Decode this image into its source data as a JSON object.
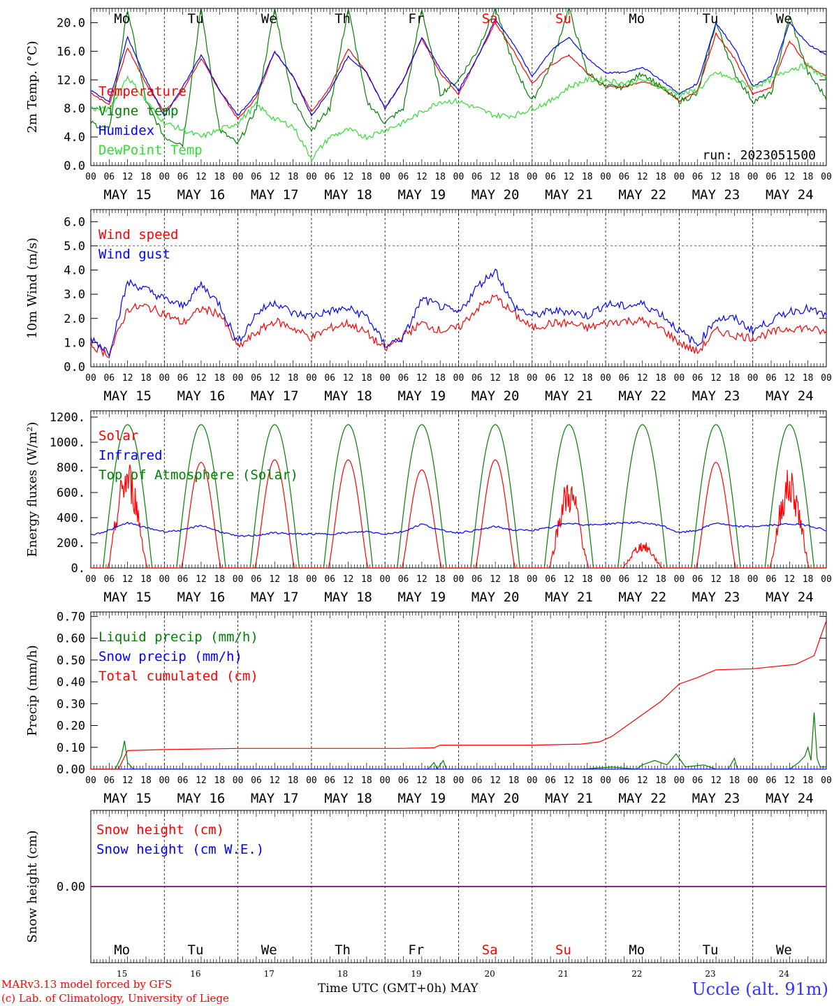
{
  "days": [
    "Mo",
    "Tu",
    "We",
    "Th",
    "Fr",
    "Sa",
    "Su",
    "Mo",
    "Tu",
    "We"
  ],
  "weekend_days": [
    5,
    6
  ],
  "dates": [
    "MAY 15",
    "MAY 16",
    "MAY 17",
    "MAY 18",
    "MAY 19",
    "MAY 20",
    "MAY 21",
    "MAY 22",
    "MAY 23",
    "MAY 24"
  ],
  "day_numbers": [
    "15",
    "16",
    "17",
    "18",
    "19",
    "20",
    "21",
    "22",
    "23",
    "24"
  ],
  "hour_ticks": [
    "00",
    "06",
    "12",
    "18"
  ],
  "run_label": "run: 2023051500",
  "footer": {
    "model": "MARv3.13 model forced by GFS",
    "credit": "(c) Lab. of Climatology, University of Liege",
    "xlabel": "Time UTC (GMT+0h) MAY",
    "station": "Uccle (alt. 91m)"
  },
  "colors": {
    "red": "#ff0000",
    "blue": "#0000ff",
    "green": "#008000",
    "lightgreen": "#33dd33",
    "purple": "#800080"
  },
  "chart_data": [
    {
      "type": "line",
      "ylabel": "2m Temp. (°C)",
      "ylim": [
        0,
        22
      ],
      "yticks": [
        "0.0",
        "4.0",
        "8.0",
        "12.0",
        "16.0",
        "20.0"
      ],
      "ytick_values": [
        0,
        4,
        8,
        12,
        16,
        20
      ],
      "x_hours": [
        0,
        6,
        12,
        18,
        24,
        30,
        36,
        42,
        48,
        54,
        60,
        66,
        72,
        78,
        84,
        90,
        96,
        102,
        108,
        114,
        120,
        126,
        132,
        138,
        144,
        150,
        156,
        162,
        168,
        174,
        180,
        186,
        192,
        198,
        204,
        210,
        216,
        222,
        228,
        234,
        240
      ],
      "series": [
        {
          "name": "Temperature",
          "color": "#ff0000",
          "values": [
            10.2,
            8.5,
            16.5,
            11.5,
            7.5,
            10.5,
            15.0,
            10.5,
            6.5,
            9.5,
            16.0,
            12.5,
            7.5,
            11.0,
            16.3,
            13.0,
            8.0,
            12.0,
            17.8,
            13.0,
            10.0,
            15.0,
            20.0,
            16.0,
            11.5,
            14.0,
            15.5,
            13.0,
            11.0,
            11.0,
            11.8,
            11.0,
            9.0,
            10.5,
            18.5,
            15.0,
            10.0,
            11.0,
            17.5,
            14.0,
            12.5
          ]
        },
        {
          "name": "Vigne temp",
          "color": "#008000",
          "values": [
            6.0,
            5.0,
            22.0,
            9.0,
            4.0,
            3.0,
            22.0,
            5.0,
            3.0,
            8.0,
            22.0,
            9.0,
            5.0,
            8.0,
            22.0,
            9.0,
            6.0,
            8.0,
            22.0,
            10.0,
            12.0,
            16.0,
            22.0,
            14.0,
            9.0,
            14.0,
            22.0,
            13.0,
            11.0,
            11.0,
            13.0,
            11.0,
            9.0,
            10.0,
            20.0,
            13.0,
            9.0,
            10.0,
            21.0,
            13.0,
            9.5
          ]
        },
        {
          "name": "Humidex",
          "color": "#0000ff",
          "values": [
            10.5,
            9.0,
            18.0,
            12.0,
            7.0,
            11.0,
            15.5,
            10.5,
            7.0,
            10.0,
            16.0,
            12.5,
            7.0,
            10.5,
            15.3,
            13.0,
            8.0,
            12.0,
            18.0,
            13.5,
            10.5,
            15.0,
            20.5,
            17.0,
            12.5,
            16.0,
            18.0,
            15.0,
            13.0,
            13.0,
            13.8,
            12.0,
            10.0,
            11.5,
            20.0,
            16.5,
            11.0,
            12.5,
            20.0,
            17.0,
            15.5
          ]
        },
        {
          "name": "DewPoint Temp",
          "color": "#33dd33",
          "values": [
            8.0,
            7.8,
            12.5,
            9.0,
            6.0,
            5.0,
            4.0,
            5.0,
            6.0,
            8.5,
            6.5,
            5.5,
            1.0,
            4.0,
            5.0,
            4.0,
            5.0,
            6.0,
            7.5,
            9.0,
            9.0,
            8.0,
            7.0,
            7.0,
            8.0,
            9.0,
            11.0,
            12.0,
            12.0,
            11.5,
            12.0,
            11.0,
            10.0,
            10.5,
            13.0,
            12.0,
            11.0,
            12.0,
            13.5,
            14.0,
            12.0
          ]
        }
      ]
    },
    {
      "type": "line",
      "ylabel": "10m Wind (m/s)",
      "ylim": [
        0,
        6.5
      ],
      "yticks": [
        "0.0",
        "1.0",
        "2.0",
        "3.0",
        "4.0",
        "5.0",
        "6.0"
      ],
      "ytick_values": [
        0,
        1,
        2,
        3,
        4,
        5,
        6
      ],
      "x_hours": [
        0,
        6,
        12,
        18,
        24,
        30,
        36,
        42,
        48,
        54,
        60,
        66,
        72,
        78,
        84,
        90,
        96,
        102,
        108,
        114,
        120,
        126,
        132,
        138,
        144,
        150,
        156,
        162,
        168,
        174,
        180,
        186,
        192,
        198,
        204,
        210,
        216,
        222,
        228,
        234,
        240
      ],
      "series": [
        {
          "name": "Wind speed",
          "color": "#ff0000",
          "values": [
            0.9,
            0.5,
            2.4,
            2.5,
            2.2,
            1.8,
            2.4,
            2.2,
            0.8,
            1.4,
            1.9,
            1.6,
            1.2,
            1.6,
            1.8,
            1.4,
            0.7,
            1.3,
            1.8,
            1.5,
            1.6,
            2.4,
            2.9,
            2.2,
            1.6,
            1.8,
            1.8,
            1.6,
            1.8,
            1.9,
            1.9,
            1.6,
            1.0,
            0.6,
            1.5,
            1.3,
            1.2,
            1.4,
            1.6,
            1.6,
            1.4
          ]
        },
        {
          "name": "Wind gust",
          "color": "#0000ff",
          "values": [
            1.2,
            0.6,
            3.5,
            3.2,
            2.8,
            2.5,
            3.4,
            2.6,
            1.0,
            2.2,
            2.7,
            2.2,
            2.1,
            2.3,
            2.4,
            2.1,
            0.9,
            1.2,
            2.8,
            2.5,
            2.2,
            3.3,
            4.0,
            2.5,
            2.1,
            2.3,
            2.3,
            2.1,
            2.6,
            2.5,
            2.6,
            2.2,
            1.5,
            0.9,
            2.0,
            2.0,
            1.5,
            1.9,
            2.3,
            2.4,
            2.1
          ]
        }
      ]
    },
    {
      "type": "line",
      "ylabel": "Energy fluxes (W/m²)",
      "ylim": [
        0,
        1250
      ],
      "yticks": [
        "0.",
        "200.",
        "400.",
        "600.",
        "800.",
        "1000.",
        "1200."
      ],
      "ytick_values": [
        0,
        200,
        400,
        600,
        800,
        1000,
        1200
      ],
      "solar_peaks": [
        730,
        840,
        860,
        860,
        780,
        860,
        600,
        180,
        840,
        670
      ],
      "toa_peak": 1140,
      "sunrise_h": 4,
      "sunset_h": 20,
      "series": [
        {
          "name": "Solar",
          "color": "#ff0000"
        },
        {
          "name": "Infrared",
          "color": "#0000ff",
          "values": [
            260,
            300,
            360,
            320,
            290,
            300,
            340,
            290,
            250,
            260,
            280,
            270,
            270,
            270,
            280,
            290,
            270,
            290,
            350,
            300,
            280,
            300,
            330,
            300,
            300,
            320,
            360,
            340,
            350,
            360,
            360,
            340,
            280,
            300,
            360,
            330,
            330,
            340,
            350,
            340,
            300
          ]
        },
        {
          "name": "Top of Atmosphere (Solar)",
          "color": "#008000"
        }
      ]
    },
    {
      "type": "line",
      "ylabel": "Precip (mm/h)",
      "ylim": [
        0,
        0.72
      ],
      "yticks": [
        "0.00",
        "0.10",
        "0.20",
        "0.30",
        "0.40",
        "0.50",
        "0.60",
        "0.70"
      ],
      "ytick_values": [
        0,
        0.1,
        0.2,
        0.3,
        0.4,
        0.5,
        0.6,
        0.7
      ],
      "series": [
        {
          "name": "Liquid precip (mm/h)",
          "color": "#008000",
          "points": [
            [
              0,
              0
            ],
            [
              8,
              0
            ],
            [
              10,
              0.06
            ],
            [
              11,
              0.13
            ],
            [
              12,
              0.03
            ],
            [
              14,
              0
            ],
            [
              110,
              0
            ],
            [
              112,
              0.03
            ],
            [
              113,
              0
            ],
            [
              115,
              0.04
            ],
            [
              116,
              0
            ],
            [
              160,
              0
            ],
            [
              170,
              0.01
            ],
            [
              178,
              0
            ],
            [
              180,
              0.02
            ],
            [
              184,
              0.04
            ],
            [
              188,
              0.02
            ],
            [
              191,
              0.07
            ],
            [
              194,
              0.01
            ],
            [
              200,
              0.02
            ],
            [
              204,
              0
            ],
            [
              208,
              0
            ],
            [
              210,
              0.05
            ],
            [
              211,
              0
            ],
            [
              228,
              0
            ],
            [
              231,
              0.03
            ],
            [
              233,
              0.06
            ],
            [
              234,
              0.1
            ],
            [
              235,
              0.04
            ],
            [
              236,
              0.26
            ],
            [
              237,
              0.05
            ],
            [
              238,
              0.01
            ],
            [
              240,
              0.01
            ]
          ]
        },
        {
          "name": "Snow precip (mm/h)",
          "color": "#0000ff",
          "points": [
            [
              0,
              0
            ],
            [
              240,
              0
            ]
          ]
        },
        {
          "name": "Total cumulated (cm)",
          "color": "#ff0000",
          "points": [
            [
              0,
              0
            ],
            [
              9,
              0
            ],
            [
              12,
              0.085
            ],
            [
              24,
              0.09
            ],
            [
              48,
              0.095
            ],
            [
              100,
              0.095
            ],
            [
              112,
              0.098
            ],
            [
              114,
              0.11
            ],
            [
              144,
              0.11
            ],
            [
              160,
              0.115
            ],
            [
              166,
              0.125
            ],
            [
              170,
              0.15
            ],
            [
              178,
              0.23
            ],
            [
              186,
              0.31
            ],
            [
              192,
              0.39
            ],
            [
              198,
              0.42
            ],
            [
              204,
              0.455
            ],
            [
              216,
              0.46
            ],
            [
              230,
              0.48
            ],
            [
              236,
              0.52
            ],
            [
              238,
              0.6
            ],
            [
              240,
              0.68
            ]
          ]
        }
      ]
    },
    {
      "type": "line",
      "ylabel": "Snow height (cm)",
      "ylim": [
        -1,
        1
      ],
      "yticks": [
        "0.00"
      ],
      "ytick_values": [
        0
      ],
      "series": [
        {
          "name": "Snow height (cm)",
          "color": "#ff0000",
          "points": [
            [
              0,
              0
            ],
            [
              240,
              0
            ]
          ]
        },
        {
          "name": "Snow height (cm W.E.)",
          "color": "#0000ff",
          "points": [
            [
              0,
              0
            ],
            [
              240,
              0
            ]
          ]
        }
      ]
    }
  ]
}
